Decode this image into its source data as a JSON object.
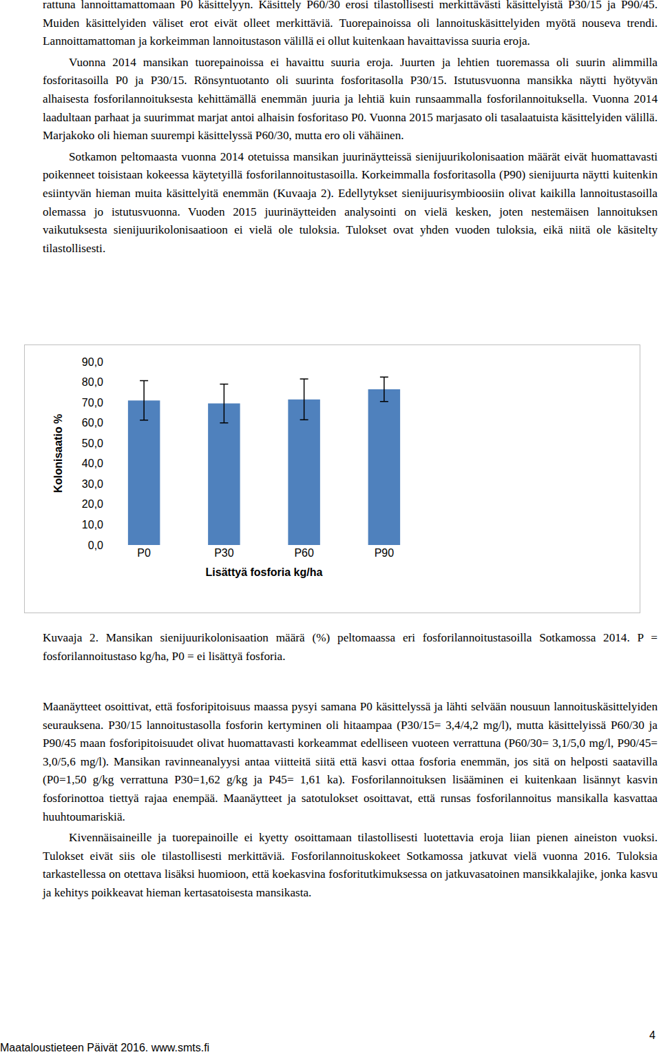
{
  "paragraphs_top": [
    "rattuna lannoittamattomaan P0 käsittelyyn. Käsittely P60/30 erosi tilastollisesti merkittävästi käsittelyistä P30/15 ja P90/45. Muiden käsittelyiden väliset erot eivät olleet merkittäviä. Tuorepainoissa oli lannoituskäsittelyiden myötä nouseva trendi. Lannoittamattoman ja korkeimman lannoitustason välillä ei ollut kuitenkaan havaittavissa suuria eroja.",
    "Vuonna 2014 mansikan tuorepainoissa ei havaittu suuria eroja. Juurten ja lehtien tuoremassa oli suurin alimmilla fosforitasoilla P0 ja P30/15. Rönsyntuotanto oli suurinta fosforitasolla P30/15. Istutusvuonna mansikka näytti hyötyvän alhaisesta fosforilannoituksesta kehittämällä enemmän juuria ja lehtiä kuin runsaammalla fosforilannoituksella. Vuonna 2014 laadultaan parhaat ja suurimmat marjat antoi alhaisin fosforitaso P0. Vuonna 2015 marjasato oli tasalaatuista käsittelyiden välillä. Marjakoko oli hieman suurempi käsittelyssä P60/30, mutta ero oli vähäinen.",
    "Sotkamon peltomaasta vuonna 2014 otetuissa mansikan juurinäytteissä sienijuurikolonisaation määrät eivät huomattavasti poikenneet toisistaan kokeessa käytetyillä fosforilannoitustasoilla. Korkeimmalla fosforitasolla (P90) sienijuurta näytti kuitenkin esiintyvän hieman muita käsittelyitä enemmän (Kuvaaja 2). Edellytykset sienijuurisymbioosiin olivat kaikilla lannoitustasoilla olemassa jo istutusvuonna. Vuoden 2015 juurinäytteiden analysointi on vielä kesken, joten nestemäisen lannoituksen vaikutuksesta sienijuurikolonisaatioon ei vielä ole tuloksia. Tulokset ovat yhden vuoden tuloksia, eikä niitä ole käsitelty tilastollisesti."
  ],
  "chart_data": {
    "type": "bar",
    "x_label": "Lisättyä fosforia kg/ha",
    "y_label": "Kolonisaatio %",
    "categories": [
      "P0",
      "P30",
      "P60",
      "P90"
    ],
    "values": [
      71.0,
      69.5,
      71.5,
      76.5
    ],
    "errors": [
      9.7,
      9.5,
      10.0,
      6.0
    ],
    "color": "#4f81bd",
    "ylim": [
      0,
      90
    ],
    "yticks": [
      {
        "value": 0,
        "label": "0,0"
      },
      {
        "value": 10,
        "label": "10,0"
      },
      {
        "value": 20,
        "label": "20,0"
      },
      {
        "value": 30,
        "label": "30,0"
      },
      {
        "value": 40,
        "label": "40,0"
      },
      {
        "value": 50,
        "label": "50,0"
      },
      {
        "value": 60,
        "label": "60,0"
      },
      {
        "value": 70,
        "label": "70,0"
      },
      {
        "value": 80,
        "label": "80,0"
      },
      {
        "value": 90,
        "label": "90,0"
      }
    ],
    "grid": false
  },
  "caption": "Kuvaaja 2. Mansikan sienijuurikolonisaation määrä (%) peltomaassa eri fosforilannoitustasoilla Sotkamossa 2014. P = fosforilannoitustaso kg/ha, P0 = ei lisättyä fosforia.",
  "paragraphs_bottom": [
    "Maanäytteet osoittivat, että fosforipitoisuus maassa pysyi samana P0 käsittelyssä ja lähti selvään nousuun lannoituskäsittelyiden seurauksena. P30/15 lannoitustasolla fosforin kertyminen oli hitaampaa (P30/15= 3,4/4,2 mg/l), mutta käsittelyissä P60/30 ja P90/45 maan fosforipitoisuudet olivat huomattavasti korkeammat edelliseen vuoteen verrattuna (P60/30= 3,1/5,0 mg/l, P90/45= 3,0/5,6 mg/l). Mansikan ravinneanalyysi antaa viitteitä siitä että kasvi ottaa fosforia enemmän, jos sitä on helposti saatavilla (P0=1,50 g/kg verrattuna P30=1,62 g/kg ja P45= 1,61 ka). Fosforilannoituksen lisääminen ei kuitenkaan lisännyt kasvin fosforinottoa tiettyä rajaa enempää. Maanäytteet ja satotulokset osoittavat, että runsas fosforilannoitus mansikalla kasvattaa huuhtoumariskiä.",
    "Kivennäisaineille ja tuorepainoille ei kyetty osoittamaan tilastollisesti luotettavia eroja liian pienen aineiston vuoksi. Tulokset eivät siis ole tilastollisesti merkittäviä. Fosforilannoituskokeet Sotkamossa jatkuvat vielä vuonna 2016. Tuloksia tarkastellessa on otettava lisäksi huomioon, että koekasvina fosforitutkimuksessa on jatkuvasatoinen mansikkalajike, jonka kasvu ja kehitys poikkeavat hieman kertasatoisesta mansikasta."
  ],
  "footer": {
    "text": "Maataloustieteen Päivät 2016. www.smts.fi",
    "page": "4"
  }
}
